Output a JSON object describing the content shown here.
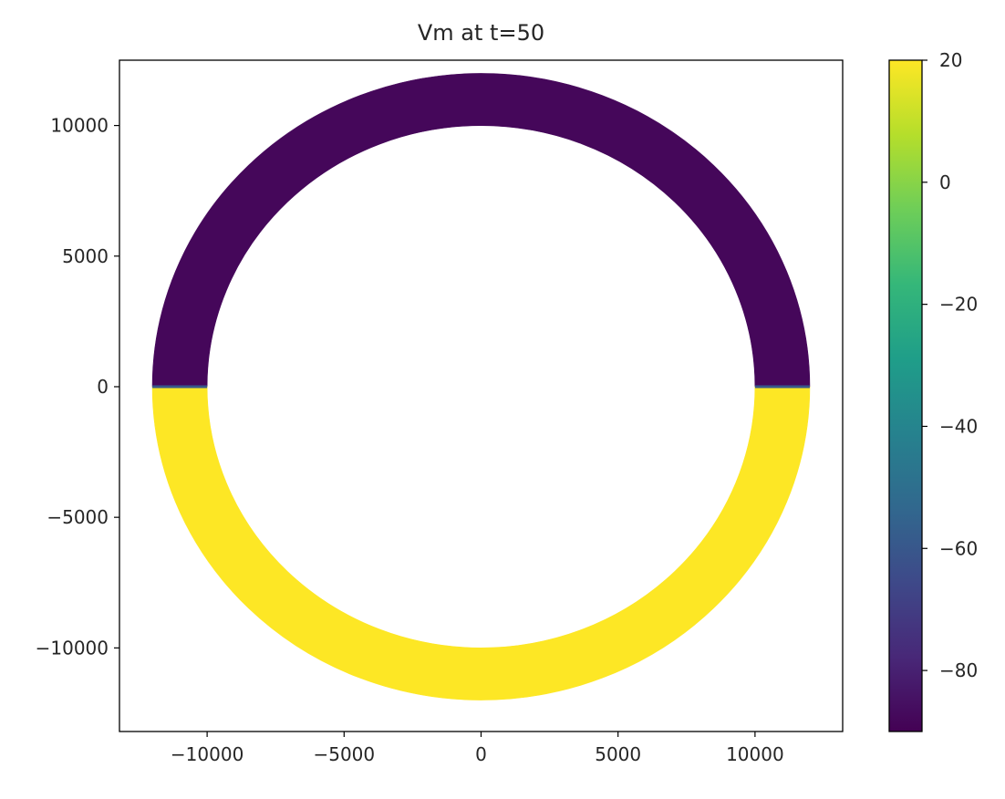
{
  "chart_data": {
    "type": "heatmap",
    "title": "Vm at t=50",
    "xlabel": "",
    "ylabel": "",
    "xlim": [
      -13200,
      13200
    ],
    "ylim": [
      -13200,
      12500
    ],
    "x_ticks": [
      -10000,
      -5000,
      0,
      5000,
      10000
    ],
    "x_tick_labels": [
      "−10000",
      "−5000",
      "0",
      "5000",
      "10000"
    ],
    "y_ticks": [
      10000,
      5000,
      0,
      -5000,
      -10000
    ],
    "y_tick_labels": [
      "10000",
      "5000",
      "0",
      "−5000",
      "−10000"
    ],
    "grid": false,
    "ring": {
      "center": [
        0,
        0
      ],
      "inner_radius": 10000,
      "outer_radius": 12000,
      "regions": [
        {
          "name": "upper half",
          "angle_from_deg": 0,
          "angle_to_deg": 180,
          "value": -88
        },
        {
          "name": "lower half",
          "angle_from_deg": 180,
          "angle_to_deg": 360,
          "value": 20
        }
      ],
      "transition_value": -60
    },
    "colorbar": {
      "colormap": "viridis",
      "min": -90,
      "max": 20,
      "ticks": [
        20,
        0,
        -20,
        -40,
        -60,
        -80
      ],
      "tick_labels": [
        "20",
        "0",
        "−20",
        "−40",
        "−60",
        "−80"
      ],
      "stops": [
        "#440154",
        "#482878",
        "#3e4989",
        "#31688e",
        "#26828e",
        "#1f9e89",
        "#35b779",
        "#6ece58",
        "#b5de2b",
        "#fde725"
      ]
    }
  }
}
